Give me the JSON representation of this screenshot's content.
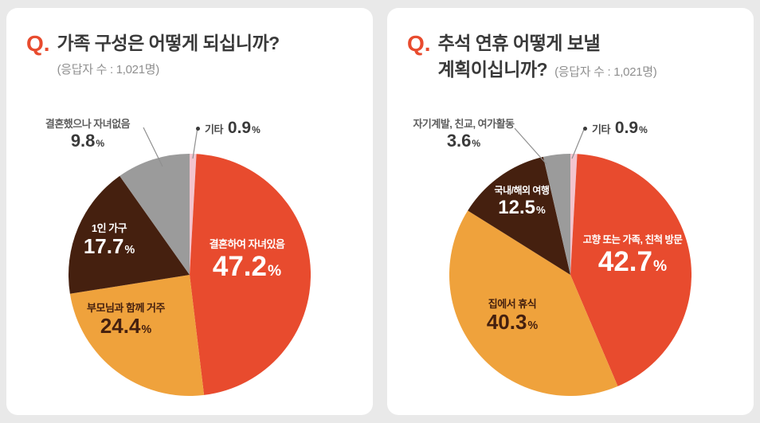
{
  "percent_sign": "%",
  "page_background": "#e9e9e9",
  "colors": {
    "accent_red": "#e84b2e",
    "orange": "#efa23c",
    "dark_brown": "#45200f",
    "gray": "#9b9b9b",
    "pink": "#f3c4ce",
    "card_background": "#ffffff"
  },
  "charts": [
    {
      "q_prefix": "Q.",
      "title_line1": "가족 구성은 어떻게 되십니까?",
      "title_line2": "",
      "respondents": "(응답자 수 : 1,021명)",
      "chart_data": {
        "type": "pie",
        "title": "가족 구성은 어떻게 되십니까?",
        "subtitle": "(응답자 수 : 1,021명)",
        "unit": "%",
        "start": "12-oclock",
        "direction": "clockwise",
        "slices": [
          {
            "name": "etc",
            "label": "기타",
            "value": 0.9,
            "color": "#f3c4ce"
          },
          {
            "name": "married-with-children",
            "label": "결혼하여 자녀있음",
            "value": 47.2,
            "color": "#e84b2e"
          },
          {
            "name": "living-with-parents",
            "label": "부모님과 함께 거주",
            "value": 24.4,
            "color": "#efa23c"
          },
          {
            "name": "single-person-household",
            "label": "1인 가구",
            "value": 17.7,
            "color": "#45200f"
          },
          {
            "name": "married-no-children",
            "label": "결혼했으나 자녀없음",
            "value": 9.8,
            "color": "#9b9b9b"
          }
        ]
      }
    },
    {
      "q_prefix": "Q.",
      "title_line1": "추석 연휴 어떻게 보낼",
      "title_line2": "계획이십니까?",
      "respondents": "(응답자 수 : 1,021명)",
      "chart_data": {
        "type": "pie",
        "title": "추석 연휴 어떻게 보낼 계획이십니까?",
        "subtitle": "(응답자 수 : 1,021명)",
        "unit": "%",
        "start": "12-oclock",
        "direction": "clockwise",
        "slices": [
          {
            "name": "etc",
            "label": "기타",
            "value": 0.9,
            "color": "#f3c4ce"
          },
          {
            "name": "visit-hometown-family-relatives",
            "label": "고향 또는 가족, 친척 방문",
            "value": 42.7,
            "color": "#e84b2e"
          },
          {
            "name": "rest-at-home",
            "label": "집에서 휴식",
            "value": 40.3,
            "color": "#efa23c"
          },
          {
            "name": "domestic-overseas-travel",
            "label": "국내/해외 여행",
            "value": 12.5,
            "color": "#45200f"
          },
          {
            "name": "self-development-social-leisure",
            "label": "자기계발, 친교, 여가활동",
            "value": 3.6,
            "color": "#9b9b9b"
          }
        ]
      }
    }
  ]
}
